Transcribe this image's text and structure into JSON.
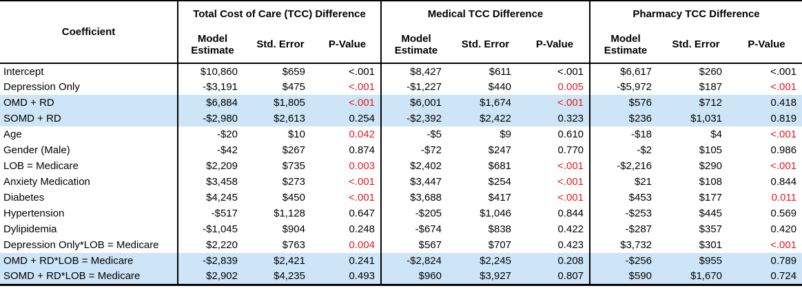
{
  "colors": {
    "significant_red": "#e31b23",
    "row_highlight_blue": "#cde5f7",
    "text": "#000000",
    "border": "#000000"
  },
  "chart_data": {
    "type": "table",
    "coefficient_header": "Coefficient",
    "groups": [
      {
        "title": "Total Cost of Care (TCC) Difference",
        "columns": [
          "Model Estimate",
          "Std. Error",
          "P-Value"
        ]
      },
      {
        "title": "Medical TCC Difference",
        "columns": [
          "Model Estimate",
          "Std. Error",
          "P-Value"
        ]
      },
      {
        "title": "Pharmacy TCC Difference",
        "columns": [
          "Model Estimate",
          "Std. Error",
          "P-Value"
        ]
      }
    ],
    "rows": [
      {
        "coefficient": "Intercept",
        "highlighted": false,
        "cells": [
          {
            "estimate": "$10,860",
            "std_error": "$659",
            "p_value": "<.001",
            "significant": false
          },
          {
            "estimate": "$8,427",
            "std_error": "$611",
            "p_value": "<.001",
            "significant": false
          },
          {
            "estimate": "$6,617",
            "std_error": "$260",
            "p_value": "<.001",
            "significant": false
          }
        ]
      },
      {
        "coefficient": "Depression Only",
        "highlighted": false,
        "cells": [
          {
            "estimate": "-$3,191",
            "std_error": "$475",
            "p_value": "<.001",
            "significant": true
          },
          {
            "estimate": "-$1,227",
            "std_error": "$440",
            "p_value": "0.005",
            "significant": true
          },
          {
            "estimate": "-$5,972",
            "std_error": "$187",
            "p_value": "<.001",
            "significant": true
          }
        ]
      },
      {
        "coefficient": "OMD + RD",
        "highlighted": true,
        "cells": [
          {
            "estimate": "$6,884",
            "std_error": "$1,805",
            "p_value": "<.001",
            "significant": true
          },
          {
            "estimate": "$6,001",
            "std_error": "$1,674",
            "p_value": "<.001",
            "significant": true
          },
          {
            "estimate": "$576",
            "std_error": "$712",
            "p_value": "0.418",
            "significant": false
          }
        ]
      },
      {
        "coefficient": "SOMD + RD",
        "highlighted": true,
        "cells": [
          {
            "estimate": "-$2,980",
            "std_error": "$2,613",
            "p_value": "0.254",
            "significant": false
          },
          {
            "estimate": "-$2,392",
            "std_error": "$2,422",
            "p_value": "0.323",
            "significant": false
          },
          {
            "estimate": "$236",
            "std_error": "$1,031",
            "p_value": "0.819",
            "significant": false
          }
        ]
      },
      {
        "coefficient": "Age",
        "highlighted": false,
        "cells": [
          {
            "estimate": "-$20",
            "std_error": "$10",
            "p_value": "0.042",
            "significant": true
          },
          {
            "estimate": "-$5",
            "std_error": "$9",
            "p_value": "0.610",
            "significant": false
          },
          {
            "estimate": "-$18",
            "std_error": "$4",
            "p_value": "<.001",
            "significant": true
          }
        ]
      },
      {
        "coefficient": "Gender (Male)",
        "highlighted": false,
        "cells": [
          {
            "estimate": "-$42",
            "std_error": "$267",
            "p_value": "0.874",
            "significant": false
          },
          {
            "estimate": "-$72",
            "std_error": "$247",
            "p_value": "0.770",
            "significant": false
          },
          {
            "estimate": "-$2",
            "std_error": "$105",
            "p_value": "0.986",
            "significant": false
          }
        ]
      },
      {
        "coefficient": "LOB = Medicare",
        "highlighted": false,
        "cells": [
          {
            "estimate": "$2,209",
            "std_error": "$735",
            "p_value": "0.003",
            "significant": true
          },
          {
            "estimate": "$2,402",
            "std_error": "$681",
            "p_value": "<.001",
            "significant": true
          },
          {
            "estimate": "-$2,216",
            "std_error": "$290",
            "p_value": "<.001",
            "significant": true
          }
        ]
      },
      {
        "coefficient": "Anxiety Medication",
        "highlighted": false,
        "cells": [
          {
            "estimate": "$3,458",
            "std_error": "$273",
            "p_value": "<.001",
            "significant": true
          },
          {
            "estimate": "$3,447",
            "std_error": "$254",
            "p_value": "<.001",
            "significant": true
          },
          {
            "estimate": "$21",
            "std_error": "$108",
            "p_value": "0.844",
            "significant": false
          }
        ]
      },
      {
        "coefficient": "Diabetes",
        "highlighted": false,
        "cells": [
          {
            "estimate": "$4,245",
            "std_error": "$450",
            "p_value": "<.001",
            "significant": true
          },
          {
            "estimate": "$3,688",
            "std_error": "$417",
            "p_value": "<.001",
            "significant": true
          },
          {
            "estimate": "$453",
            "std_error": "$177",
            "p_value": "0.011",
            "significant": true
          }
        ]
      },
      {
        "coefficient": "Hypertension",
        "highlighted": false,
        "cells": [
          {
            "estimate": "-$517",
            "std_error": "$1,128",
            "p_value": "0.647",
            "significant": false
          },
          {
            "estimate": "-$205",
            "std_error": "$1,046",
            "p_value": "0.844",
            "significant": false
          },
          {
            "estimate": "-$253",
            "std_error": "$445",
            "p_value": "0.569",
            "significant": false
          }
        ]
      },
      {
        "coefficient": "Dylipidemia",
        "highlighted": false,
        "cells": [
          {
            "estimate": "-$1,045",
            "std_error": "$904",
            "p_value": "0.248",
            "significant": false
          },
          {
            "estimate": "-$674",
            "std_error": "$838",
            "p_value": "0.422",
            "significant": false
          },
          {
            "estimate": "-$287",
            "std_error": "$357",
            "p_value": "0.420",
            "significant": false
          }
        ]
      },
      {
        "coefficient": "Depression Only*LOB = Medicare",
        "highlighted": false,
        "cells": [
          {
            "estimate": "$2,220",
            "std_error": "$763",
            "p_value": "0.004",
            "significant": true
          },
          {
            "estimate": "$567",
            "std_error": "$707",
            "p_value": "0.423",
            "significant": false
          },
          {
            "estimate": "$3,732",
            "std_error": "$301",
            "p_value": "<.001",
            "significant": true
          }
        ]
      },
      {
        "coefficient": "OMD + RD*LOB = Medicare",
        "highlighted": true,
        "cells": [
          {
            "estimate": "-$2,839",
            "std_error": "$2,421",
            "p_value": "0.241",
            "significant": false
          },
          {
            "estimate": "-$2,824",
            "std_error": "$2,245",
            "p_value": "0.208",
            "significant": false
          },
          {
            "estimate": "-$256",
            "std_error": "$955",
            "p_value": "0.789",
            "significant": false
          }
        ]
      },
      {
        "coefficient": "SOMD + RD*LOB = Medicare",
        "highlighted": true,
        "cells": [
          {
            "estimate": "$2,902",
            "std_error": "$4,235",
            "p_value": "0.493",
            "significant": false
          },
          {
            "estimate": "$960",
            "std_error": "$3,927",
            "p_value": "0.807",
            "significant": false
          },
          {
            "estimate": "$590",
            "std_error": "$1,670",
            "p_value": "0.724",
            "significant": false
          }
        ]
      }
    ]
  }
}
